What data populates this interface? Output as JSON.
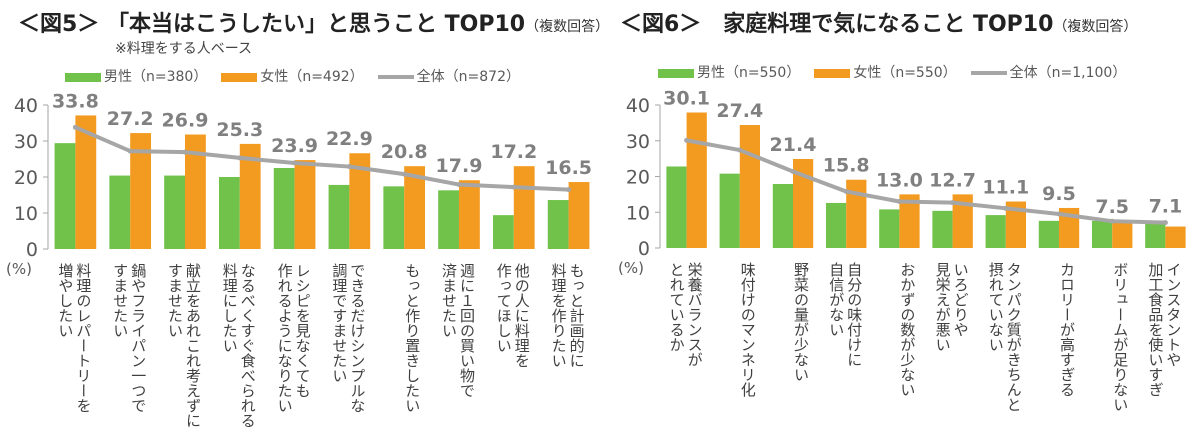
{
  "colors": {
    "male": "#70c24a",
    "female": "#f39a20",
    "total": "#a6a6a6",
    "label": "#808080",
    "axis": "#a6a6a6"
  },
  "chart_data": [
    {
      "type": "bar",
      "title": "＜図5＞ 「本当はこうしたい」と思うこと TOP10",
      "title_note": "（複数回答）",
      "subtitle": "※料理をする人ベース",
      "ylabel": "(%)",
      "ylim": [
        0,
        40
      ],
      "yticks": [
        0,
        10,
        20,
        30,
        40
      ],
      "legend_position": "top",
      "categories": [
        "料理のレパートリーを\n増やしたい",
        "鍋やフライパン一つで\nすませたい",
        "献立をあれこれ考えずに\nすませたい",
        "なるべくすぐ食べられる\n料理にしたい",
        "レシピを見なくても\n作れるようになりたい",
        "できるだけシンプルな\n調理ですませたい",
        "もっと作り置きしたい",
        "週に１回の買い物で\n済ませたい",
        "他の人に料理を\n作ってほしい",
        "もっと計画的に\n料理を作りたい"
      ],
      "series": [
        {
          "name": "男性（n=380）",
          "kind": "bar",
          "values": [
            29.4,
            20.4,
            20.4,
            20.0,
            22.5,
            17.8,
            17.4,
            16.3,
            9.4,
            13.6
          ]
        },
        {
          "name": "女性（n=492）",
          "kind": "bar",
          "values": [
            37.1,
            32.2,
            31.8,
            29.2,
            24.7,
            26.6,
            23.0,
            19.1,
            23.0,
            18.6
          ]
        },
        {
          "name": "全体（n=872）",
          "kind": "line",
          "values": [
            33.8,
            27.2,
            26.9,
            25.3,
            23.9,
            22.9,
            20.8,
            17.9,
            17.2,
            16.5
          ],
          "data_labels": [
            "33.8",
            "27.2",
            "26.9",
            "25.3",
            "23.9",
            "22.9",
            "20.8",
            "17.9",
            "17.2",
            "16.5"
          ]
        }
      ]
    },
    {
      "type": "bar",
      "title": "＜図6＞　家庭料理で気になること TOP10",
      "title_note": "（複数回答）",
      "ylabel": "(%)",
      "ylim": [
        0,
        40
      ],
      "yticks": [
        0,
        10,
        20,
        30,
        40
      ],
      "legend_position": "top",
      "categories": [
        "栄養バランスが\nとれているか",
        "味付けのマンネリ化",
        "野菜の量が少ない",
        "自分の味付けに\n自信がない",
        "おかずの数が少ない",
        "いろどりや\n見栄えが悪い",
        "タンパク質がきちんと\n摂れていない",
        "カロリーが高すぎる",
        "ボリュームが足りない",
        "インスタントや\n加工食品を使いすぎ"
      ],
      "series": [
        {
          "name": "男性（n=550）",
          "kind": "bar",
          "values": [
            22.8,
            20.8,
            17.9,
            12.6,
            10.8,
            10.4,
            9.2,
            7.6,
            7.6,
            7.7
          ]
        },
        {
          "name": "女性（n=550）",
          "kind": "bar",
          "values": [
            37.9,
            34.4,
            24.9,
            19.1,
            15.0,
            15.0,
            13.0,
            11.2,
            7.0,
            6.0
          ]
        },
        {
          "name": "全体（n=1,100）",
          "kind": "line",
          "values": [
            30.1,
            27.4,
            21.4,
            15.8,
            13.0,
            12.7,
            11.1,
            9.5,
            7.5,
            7.1
          ],
          "data_labels": [
            "30.1",
            "27.4",
            "21.4",
            "15.8",
            "13.0",
            "12.7",
            "11.1",
            "9.5",
            "7.5",
            "7.1"
          ]
        }
      ]
    }
  ]
}
